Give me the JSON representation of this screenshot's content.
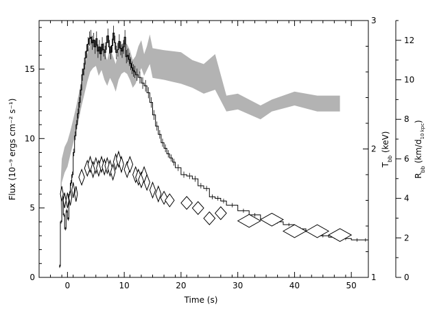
{
  "chart_data": {
    "type": "line",
    "xlabel": "Time (s)",
    "xlim": [
      -5,
      53
    ],
    "x_ticks": [
      0,
      10,
      20,
      30,
      40,
      50
    ],
    "axes": {
      "left": {
        "label": "Flux (10⁻⁹ ergs cm⁻² s⁻¹)",
        "lim": [
          0,
          18.5
        ],
        "ticks": [
          0,
          5,
          10,
          15
        ]
      },
      "right_temperature": {
        "label_main": "T",
        "label_sub": "bb",
        "label_tail": " (keV)",
        "lim": [
          1,
          3
        ],
        "ticks": [
          1,
          2,
          3
        ]
      },
      "right_radius": {
        "label_main": "R",
        "label_sub": "bb",
        "label_tail": " (km/d",
        "label_sub2": "10 kpc",
        "label_end": ")",
        "lim": [
          0,
          13
        ],
        "ticks": [
          0,
          2,
          4,
          6,
          8,
          10,
          12
        ]
      }
    },
    "series": [
      {
        "kind": "flux-histogram",
        "axis": "left",
        "color": "#000000",
        "x": [
          -1.5,
          -1.25,
          -1.0,
          -0.75,
          -0.5,
          -0.25,
          0,
          0.25,
          0.5,
          0.75,
          1,
          1.25,
          1.5,
          1.75,
          2,
          2.25,
          2.5,
          2.75,
          3,
          3.25,
          3.5,
          3.75,
          4,
          4.25,
          4.5,
          4.75,
          5,
          5.25,
          5.5,
          5.75,
          6,
          6.25,
          6.5,
          6.75,
          7,
          7.25,
          7.5,
          7.75,
          8,
          8.25,
          8.5,
          8.75,
          9,
          9.25,
          9.5,
          9.75,
          10,
          10.25,
          10.5,
          10.75,
          11,
          11.25,
          11.5,
          11.75,
          12,
          12.5,
          13,
          13.5,
          14,
          14.5,
          15,
          15.5,
          16,
          16.5,
          17,
          17.5,
          18,
          18.5,
          19,
          20,
          21,
          22,
          23,
          24,
          25,
          26,
          27,
          28,
          30,
          32,
          34,
          36,
          38,
          40,
          42,
          44,
          46,
          48,
          50,
          52,
          53
        ],
        "values": [
          0.8,
          4.0,
          5.8,
          4.5,
          3.5,
          4.8,
          4.2,
          6.0,
          6.8,
          7.4,
          9.0,
          10.2,
          11.0,
          11.8,
          12.6,
          13.5,
          14.6,
          15.0,
          15.8,
          16.3,
          16.8,
          17.2,
          17.3,
          16.9,
          17.1,
          16.6,
          17.2,
          16.3,
          16.6,
          16.1,
          16.8,
          16.4,
          16.2,
          16.9,
          17.4,
          16.6,
          16.2,
          16.7,
          17.6,
          16.9,
          16.2,
          16.4,
          17.0,
          16.5,
          16.3,
          16.6,
          17.3,
          15.9,
          16.0,
          15.7,
          15.4,
          15.1,
          14.9,
          14.8,
          14.6,
          14.4,
          14.0,
          13.8,
          13.3,
          12.6,
          11.7,
          10.9,
          10.3,
          9.7,
          9.3,
          8.9,
          8.6,
          8.3,
          7.9,
          7.4,
          7.3,
          7.1,
          6.6,
          6.4,
          5.8,
          5.7,
          5.5,
          5.2,
          4.8,
          4.5,
          4.2,
          4.0,
          3.8,
          3.5,
          3.3,
          3.0,
          2.9,
          2.8,
          2.7,
          2.7,
          2.7
        ]
      },
      {
        "kind": "radius-band",
        "axis": "right_radius",
        "color": "#b3b3b3",
        "x": [
          -1.2,
          -1.0,
          -0.5,
          0,
          0.5,
          1,
          1.5,
          2,
          2.5,
          3,
          3.5,
          4,
          4.5,
          5,
          5.5,
          6,
          6.5,
          7,
          7.5,
          8,
          8.5,
          9,
          9.5,
          10,
          10.5,
          11,
          11.5,
          12,
          12.5,
          13,
          13.5,
          14,
          14.5,
          15,
          17,
          20,
          22,
          24,
          26,
          28,
          30,
          34,
          36,
          40,
          44,
          48
        ],
        "upper": [
          4.8,
          6.0,
          6.6,
          6.9,
          7.4,
          8.0,
          8.6,
          9.3,
          10.0,
          10.7,
          11.3,
          11.8,
          12.0,
          12.0,
          11.5,
          11.8,
          11.4,
          11.0,
          11.6,
          11.2,
          10.8,
          11.5,
          11.8,
          11.9,
          11.8,
          11.5,
          11.0,
          11.2,
          11.7,
          12.0,
          11.3,
          11.7,
          12.3,
          11.6,
          11.5,
          11.4,
          11.0,
          10.8,
          11.3,
          9.2,
          9.3,
          8.7,
          9.0,
          9.4,
          9.2,
          9.2
        ],
        "lower": [
          3.3,
          4.8,
          5.3,
          5.6,
          6.2,
          6.8,
          7.4,
          8.0,
          8.7,
          9.3,
          9.9,
          10.4,
          10.6,
          10.7,
          10.2,
          10.5,
          10.0,
          9.7,
          10.1,
          9.8,
          9.4,
          10.0,
          10.3,
          10.4,
          10.3,
          10.0,
          9.6,
          9.8,
          10.2,
          10.6,
          10.2,
          10.5,
          10.8,
          10.1,
          10.0,
          9.8,
          9.6,
          9.3,
          9.5,
          8.4,
          8.5,
          8.0,
          8.4,
          8.7,
          8.4,
          8.4
        ]
      },
      {
        "kind": "temperature-diamonds",
        "axis": "right_temperature",
        "color": "#000000",
        "points": [
          [
            -1.0,
            1.65
          ],
          [
            -0.5,
            1.6
          ],
          [
            0,
            1.6
          ],
          [
            0.5,
            1.62
          ],
          [
            1,
            1.68
          ],
          [
            1.5,
            1.65
          ],
          [
            2.5,
            1.78
          ],
          [
            3.5,
            1.85
          ],
          [
            4.0,
            1.88
          ],
          [
            4.5,
            1.84
          ],
          [
            5,
            1.87
          ],
          [
            5.5,
            1.85
          ],
          [
            6,
            1.88
          ],
          [
            6.5,
            1.86
          ],
          [
            7,
            1.87
          ],
          [
            7.5,
            1.85
          ],
          [
            8,
            1.82
          ],
          [
            8.5,
            1.9
          ],
          [
            9,
            1.92
          ],
          [
            9.5,
            1.88
          ],
          [
            10.5,
            1.84
          ],
          [
            11,
            1.88
          ],
          [
            12,
            1.8
          ],
          [
            12.5,
            1.78
          ],
          [
            13,
            1.76
          ],
          [
            13.5,
            1.8
          ],
          [
            14,
            1.74
          ],
          [
            15,
            1.68
          ],
          [
            16,
            1.65
          ],
          [
            17,
            1.62
          ],
          [
            18,
            1.6
          ],
          [
            21,
            1.58
          ],
          [
            23,
            1.54
          ],
          [
            25,
            1.46
          ],
          [
            27,
            1.5
          ],
          [
            32,
            1.44
          ],
          [
            36,
            1.45
          ],
          [
            40,
            1.36
          ],
          [
            44,
            1.36
          ],
          [
            48,
            1.33
          ]
        ],
        "widths": [
          0.25,
          0.25,
          0.25,
          0.25,
          0.25,
          0.25,
          0.5,
          0.5,
          0.4,
          0.4,
          0.4,
          0.4,
          0.4,
          0.4,
          0.4,
          0.4,
          0.4,
          0.4,
          0.4,
          0.4,
          0.5,
          0.5,
          0.5,
          0.5,
          0.5,
          0.5,
          0.5,
          0.5,
          0.5,
          0.6,
          0.8,
          1.0,
          1.0,
          1.0,
          1.0,
          2.0,
          2.0,
          2.0,
          2.0,
          2.0
        ],
        "heights": [
          0.06,
          0.06,
          0.06,
          0.06,
          0.06,
          0.06,
          0.06,
          0.06,
          0.06,
          0.06,
          0.06,
          0.06,
          0.06,
          0.06,
          0.06,
          0.06,
          0.06,
          0.06,
          0.06,
          0.06,
          0.06,
          0.06,
          0.06,
          0.06,
          0.06,
          0.06,
          0.06,
          0.06,
          0.06,
          0.05,
          0.05,
          0.05,
          0.05,
          0.05,
          0.05,
          0.05,
          0.05,
          0.05,
          0.05,
          0.05
        ]
      }
    ]
  }
}
